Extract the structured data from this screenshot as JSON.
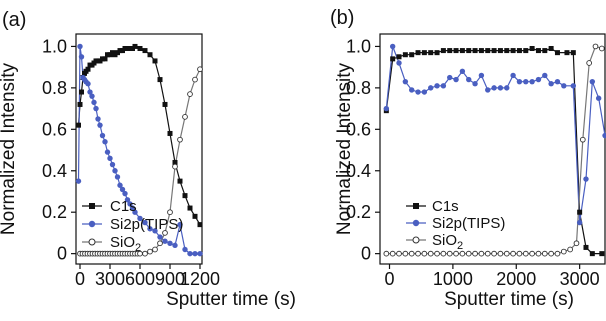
{
  "figure": {
    "panels": [
      "(a)",
      "(b)"
    ]
  },
  "chart_data": [
    {
      "type": "line",
      "panel_label": "(a)",
      "xlabel": "Sputter time (s)",
      "ylabel": "Normalized Intensity",
      "xlim": [
        -40,
        1220
      ],
      "ylim": [
        -0.05,
        1.06
      ],
      "xticks": [
        0,
        300,
        600,
        900,
        1200
      ],
      "yticks": [
        0,
        0.2,
        0.4,
        0.6,
        0.8,
        1.0
      ],
      "ytick_labels": [
        "0",
        "0.2",
        "0.4",
        "0.6",
        "0.8",
        "1.0"
      ],
      "grid": false,
      "legend_position": "bottom-left",
      "series": [
        {
          "name": "C1s",
          "color": "#111111",
          "marker": "square-filled",
          "points": [
            [
              -15,
              0.62
            ],
            [
              0,
              0.72
            ],
            [
              15,
              0.78
            ],
            [
              30,
              0.85
            ],
            [
              45,
              0.87
            ],
            [
              60,
              0.88
            ],
            [
              80,
              0.89
            ],
            [
              100,
              0.91
            ],
            [
              120,
              0.91
            ],
            [
              140,
              0.92
            ],
            [
              160,
              0.93
            ],
            [
              180,
              0.93
            ],
            [
              200,
              0.93
            ],
            [
              225,
              0.94
            ],
            [
              250,
              0.94
            ],
            [
              275,
              0.96
            ],
            [
              300,
              0.96
            ],
            [
              325,
              0.97
            ],
            [
              350,
              0.96
            ],
            [
              375,
              0.97
            ],
            [
              400,
              0.98
            ],
            [
              425,
              0.98
            ],
            [
              450,
              0.99
            ],
            [
              475,
              0.99
            ],
            [
              500,
              0.99
            ],
            [
              525,
              0.99
            ],
            [
              550,
              1.0
            ],
            [
              600,
              0.99
            ],
            [
              650,
              0.98
            ],
            [
              700,
              0.96
            ],
            [
              750,
              0.93
            ],
            [
              800,
              0.84
            ],
            [
              850,
              0.72
            ],
            [
              900,
              0.58
            ],
            [
              950,
              0.44
            ],
            [
              1000,
              0.35
            ],
            [
              1050,
              0.28
            ],
            [
              1100,
              0.22
            ],
            [
              1150,
              0.18
            ],
            [
              1200,
              0.14
            ]
          ]
        },
        {
          "name": "Si2p(TIPS)",
          "color": "#4a5fc1",
          "marker": "circle-filled",
          "points": [
            [
              -15,
              0.35
            ],
            [
              0,
              1.0
            ],
            [
              15,
              0.95
            ],
            [
              30,
              0.85
            ],
            [
              45,
              0.84
            ],
            [
              60,
              0.83
            ],
            [
              80,
              0.82
            ],
            [
              100,
              0.78
            ],
            [
              120,
              0.76
            ],
            [
              140,
              0.73
            ],
            [
              160,
              0.7
            ],
            [
              180,
              0.65
            ],
            [
              200,
              0.62
            ],
            [
              225,
              0.57
            ],
            [
              250,
              0.54
            ],
            [
              275,
              0.49
            ],
            [
              300,
              0.46
            ],
            [
              325,
              0.43
            ],
            [
              350,
              0.4
            ],
            [
              375,
              0.37
            ],
            [
              400,
              0.33
            ],
            [
              425,
              0.31
            ],
            [
              450,
              0.29
            ],
            [
              475,
              0.26
            ],
            [
              500,
              0.24
            ],
            [
              525,
              0.22
            ],
            [
              550,
              0.2
            ],
            [
              600,
              0.17
            ],
            [
              650,
              0.15
            ],
            [
              700,
              0.12
            ],
            [
              750,
              0.11
            ],
            [
              800,
              0.08
            ],
            [
              850,
              0.06
            ],
            [
              900,
              0.05
            ],
            [
              950,
              0.04
            ],
            [
              1000,
              0.14
            ],
            [
              1050,
              0.02
            ],
            [
              1100,
              0.0
            ],
            [
              1150,
              0.0
            ],
            [
              1200,
              0.0
            ]
          ]
        },
        {
          "name": "SiO2",
          "legend_main": "SiO",
          "legend_sub": "2",
          "color": "#777777",
          "marker": "circle-open",
          "points": [
            [
              0,
              0.0
            ],
            [
              25,
              0.0
            ],
            [
              50,
              0.0
            ],
            [
              75,
              0.0
            ],
            [
              100,
              0.0
            ],
            [
              125,
              0.0
            ],
            [
              150,
              0.0
            ],
            [
              175,
              0.0
            ],
            [
              200,
              0.0
            ],
            [
              225,
              0.0
            ],
            [
              250,
              0.0
            ],
            [
              275,
              0.0
            ],
            [
              300,
              0.0
            ],
            [
              325,
              0.0
            ],
            [
              350,
              0.0
            ],
            [
              375,
              0.0
            ],
            [
              400,
              0.0
            ],
            [
              425,
              0.0
            ],
            [
              450,
              0.0
            ],
            [
              475,
              0.0
            ],
            [
              500,
              0.0
            ],
            [
              525,
              0.0
            ],
            [
              550,
              0.0
            ],
            [
              575,
              0.0
            ],
            [
              600,
              0.0
            ],
            [
              650,
              0.0
            ],
            [
              700,
              0.01
            ],
            [
              750,
              0.02
            ],
            [
              800,
              0.05
            ],
            [
              850,
              0.1
            ],
            [
              900,
              0.2
            ],
            [
              950,
              0.42
            ],
            [
              1000,
              0.55
            ],
            [
              1050,
              0.66
            ],
            [
              1100,
              0.77
            ],
            [
              1150,
              0.84
            ],
            [
              1200,
              0.89
            ]
          ]
        }
      ]
    },
    {
      "type": "line",
      "panel_label": "(b)",
      "xlabel": "Sputter time (s)",
      "ylabel": "Normalized Intensity",
      "xlim": [
        -150,
        3400
      ],
      "ylim": [
        -0.05,
        1.06
      ],
      "xticks": [
        0,
        1000,
        2000,
        3000
      ],
      "yticks": [
        0,
        0.2,
        0.4,
        0.6,
        0.8,
        1.0
      ],
      "ytick_labels": [
        "0",
        "0.2",
        "0.4",
        "0.6",
        "0.8",
        "1.0"
      ],
      "grid": false,
      "legend_position": "bottom-left",
      "series": [
        {
          "name": "C1s",
          "color": "#111111",
          "marker": "square-filled",
          "points": [
            [
              -50,
              0.69
            ],
            [
              50,
              0.94
            ],
            [
              150,
              0.95
            ],
            [
              250,
              0.96
            ],
            [
              350,
              0.96
            ],
            [
              450,
              0.97
            ],
            [
              550,
              0.97
            ],
            [
              650,
              0.97
            ],
            [
              750,
              0.97
            ],
            [
              850,
              0.98
            ],
            [
              950,
              0.98
            ],
            [
              1050,
              0.98
            ],
            [
              1150,
              0.98
            ],
            [
              1250,
              0.98
            ],
            [
              1350,
              0.98
            ],
            [
              1450,
              0.98
            ],
            [
              1550,
              0.98
            ],
            [
              1650,
              0.98
            ],
            [
              1750,
              0.98
            ],
            [
              1850,
              0.98
            ],
            [
              1950,
              0.98
            ],
            [
              2050,
              0.98
            ],
            [
              2150,
              0.98
            ],
            [
              2250,
              0.99
            ],
            [
              2350,
              0.98
            ],
            [
              2450,
              0.98
            ],
            [
              2550,
              0.99
            ],
            [
              2650,
              0.97
            ],
            [
              2800,
              0.97
            ],
            [
              2900,
              0.97
            ],
            [
              3000,
              0.2
            ],
            [
              3100,
              0.03
            ],
            [
              3200,
              0.0
            ],
            [
              3350,
              0.0
            ]
          ]
        },
        {
          "name": "Si2p(TIPS)",
          "color": "#4a5fc1",
          "marker": "circle-filled",
          "points": [
            [
              -50,
              0.7
            ],
            [
              50,
              1.0
            ],
            [
              150,
              0.92
            ],
            [
              250,
              0.83
            ],
            [
              350,
              0.79
            ],
            [
              450,
              0.78
            ],
            [
              550,
              0.78
            ],
            [
              650,
              0.8
            ],
            [
              750,
              0.81
            ],
            [
              850,
              0.81
            ],
            [
              950,
              0.85
            ],
            [
              1050,
              0.84
            ],
            [
              1150,
              0.88
            ],
            [
              1250,
              0.84
            ],
            [
              1350,
              0.82
            ],
            [
              1450,
              0.86
            ],
            [
              1550,
              0.79
            ],
            [
              1650,
              0.8
            ],
            [
              1750,
              0.8
            ],
            [
              1850,
              0.8
            ],
            [
              1950,
              0.86
            ],
            [
              2050,
              0.83
            ],
            [
              2150,
              0.83
            ],
            [
              2250,
              0.83
            ],
            [
              2350,
              0.84
            ],
            [
              2450,
              0.86
            ],
            [
              2550,
              0.82
            ],
            [
              2650,
              0.83
            ],
            [
              2750,
              0.81
            ],
            [
              2900,
              0.81
            ],
            [
              3000,
              0.15
            ],
            [
              3100,
              0.36
            ],
            [
              3200,
              0.83
            ],
            [
              3300,
              0.75
            ],
            [
              3400,
              0.57
            ]
          ]
        },
        {
          "name": "SiO2",
          "legend_main": "SiO",
          "legend_sub": "2",
          "color": "#777777",
          "marker": "circle-open",
          "points": [
            [
              -50,
              0.0
            ],
            [
              50,
              0.0
            ],
            [
              150,
              0.0
            ],
            [
              250,
              0.0
            ],
            [
              350,
              0.0
            ],
            [
              450,
              0.0
            ],
            [
              550,
              0.0
            ],
            [
              650,
              0.0
            ],
            [
              750,
              0.0
            ],
            [
              850,
              0.0
            ],
            [
              950,
              0.0
            ],
            [
              1050,
              0.0
            ],
            [
              1150,
              0.0
            ],
            [
              1250,
              0.0
            ],
            [
              1350,
              0.0
            ],
            [
              1450,
              0.0
            ],
            [
              1550,
              0.0
            ],
            [
              1650,
              0.0
            ],
            [
              1750,
              0.0
            ],
            [
              1850,
              0.0
            ],
            [
              1950,
              0.0
            ],
            [
              2050,
              0.0
            ],
            [
              2150,
              0.0
            ],
            [
              2250,
              0.0
            ],
            [
              2350,
              0.0
            ],
            [
              2450,
              0.0
            ],
            [
              2550,
              0.0
            ],
            [
              2650,
              0.0
            ],
            [
              2750,
              0.01
            ],
            [
              2850,
              0.02
            ],
            [
              2950,
              0.05
            ],
            [
              3050,
              0.55
            ],
            [
              3150,
              0.92
            ],
            [
              3250,
              1.0
            ],
            [
              3350,
              0.99
            ]
          ]
        }
      ]
    }
  ]
}
